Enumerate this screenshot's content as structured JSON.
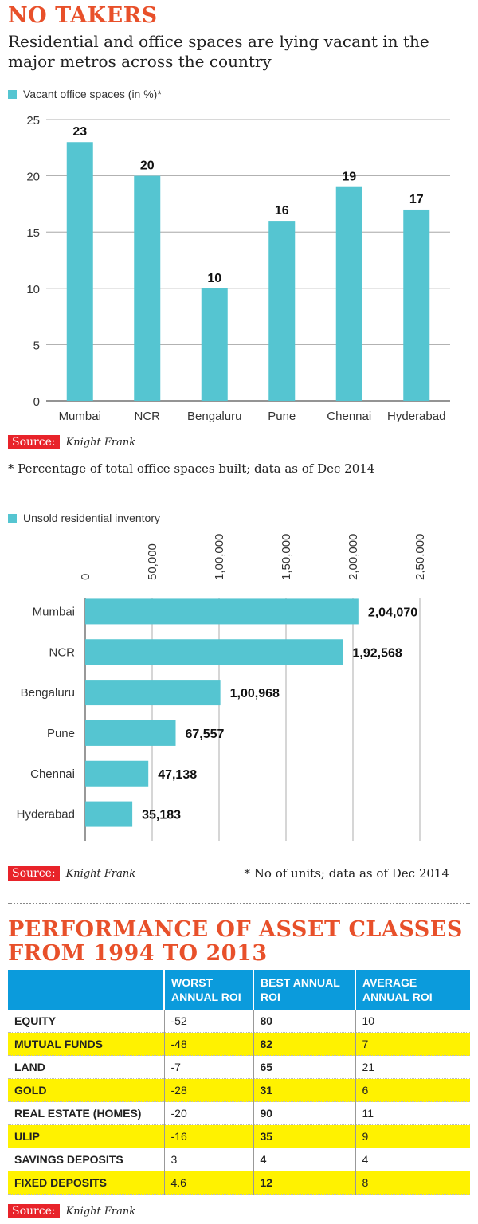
{
  "title": "NO TAKERS",
  "subtitle": "Residential and office spaces are lying vacant in the major metros across the country",
  "colors": {
    "bar": "#55c5d1",
    "accent": "#e8502a",
    "source_red": "#e8232a",
    "table_header": "#0b9bdc",
    "highlight": "#fff200"
  },
  "chart_data": [
    {
      "type": "bar",
      "legend": "Vacant office spaces (in %)*",
      "categories": [
        "Mumbai",
        "NCR",
        "Bengaluru",
        "Pune",
        "Chennai",
        "Hyderabad"
      ],
      "values": [
        23,
        20,
        10,
        16,
        19,
        17
      ],
      "value_labels": [
        "23",
        "20",
        "10",
        "16",
        "19",
        "17"
      ],
      "ylim": [
        0,
        25
      ],
      "yticks": [
        "0",
        "5",
        "10",
        "15",
        "20",
        "25"
      ],
      "ytick_values": [
        0,
        5,
        10,
        15,
        20,
        25
      ],
      "grid": true,
      "source_label": "Source:",
      "source": "Knight Frank",
      "note": "* Percentage of total office spaces built; data as of Dec 2014"
    },
    {
      "type": "bar",
      "orientation": "horizontal",
      "legend": "Unsold residential inventory",
      "categories": [
        "Mumbai",
        "NCR",
        "Bengaluru",
        "Pune",
        "Chennai",
        "Hyderabad"
      ],
      "values": [
        204070,
        192568,
        100968,
        67557,
        47138,
        35183
      ],
      "value_labels": [
        "2,04,070",
        "1,92,568",
        "1,00,968",
        "67,557",
        "47,138",
        "35,183"
      ],
      "xlim": [
        0,
        250000
      ],
      "xticks": [
        "0",
        "50,000",
        "1,00,000",
        "1,50,000",
        "2,00,000",
        "2,50,000"
      ],
      "xtick_values": [
        0,
        50000,
        100000,
        150000,
        200000,
        250000
      ],
      "grid": true,
      "source_label": "Source:",
      "source": "Knight Frank",
      "note": "* No of units; data as of Dec 2014"
    },
    {
      "type": "table",
      "title": "PERFORMANCE OF ASSET CLASSES FROM 1994 TO 2013",
      "columns": [
        "",
        "WORST ANNUAL ROI",
        "BEST ANNUAL ROI",
        "AVERAGE ANNUAL ROI"
      ],
      "rows": [
        {
          "asset": "EQUITY",
          "worst": "-52",
          "best": "80",
          "average": "10",
          "highlight": false
        },
        {
          "asset": "MUTUAL FUNDS",
          "worst": "-48",
          "best": "82",
          "average": "7",
          "highlight": true
        },
        {
          "asset": "LAND",
          "worst": "-7",
          "best": "65",
          "average": "21",
          "highlight": false
        },
        {
          "asset": "GOLD",
          "worst": "-28",
          "best": "31",
          "average": "6",
          "highlight": true
        },
        {
          "asset": "REAL ESTATE (HOMES)",
          "worst": "-20",
          "best": "90",
          "average": "11",
          "highlight": false
        },
        {
          "asset": "ULIP",
          "worst": "-16",
          "best": "35",
          "average": "9",
          "highlight": true
        },
        {
          "asset": "SAVINGS DEPOSITS",
          "worst": "3",
          "best": "4",
          "average": "4",
          "highlight": false
        },
        {
          "asset": "FIXED DEPOSITS",
          "worst": "4.6",
          "best": "12",
          "average": "8",
          "highlight": true
        }
      ],
      "source_label": "Source:",
      "source": "Knight Frank"
    }
  ]
}
